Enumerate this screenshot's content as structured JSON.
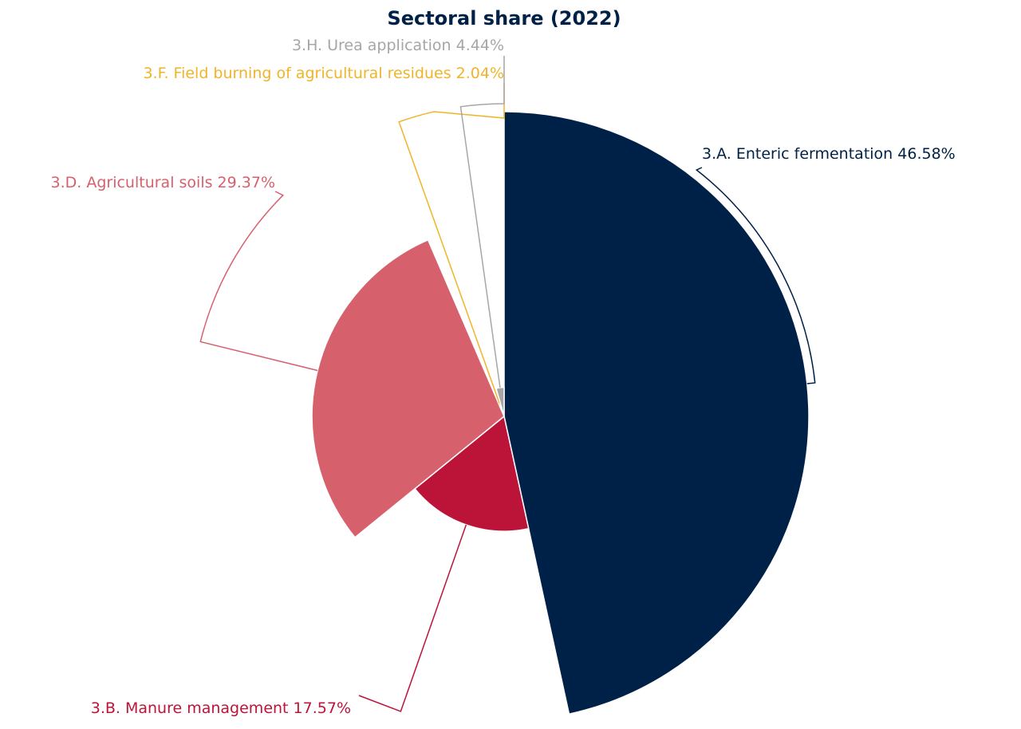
{
  "chart_data": {
    "type": "pie",
    "title": "Sectoral share (2022)",
    "radius_by_value": true,
    "categories": [
      "3.A. Enteric fermentation",
      "3.B. Manure management",
      "3.D. Agricultural soils",
      "3.F. Field burning of agricultural residues",
      "3.H. Urea application"
    ],
    "values": [
      46.58,
      17.57,
      29.37,
      2.04,
      4.44
    ],
    "value_labels": [
      "46.58%",
      "17.57%",
      "29.37%",
      "2.04%",
      "4.44%"
    ],
    "colors": [
      "#002147",
      "#bc1439",
      "#d6616d",
      "#f0b429",
      "#a6a6a6"
    ]
  }
}
